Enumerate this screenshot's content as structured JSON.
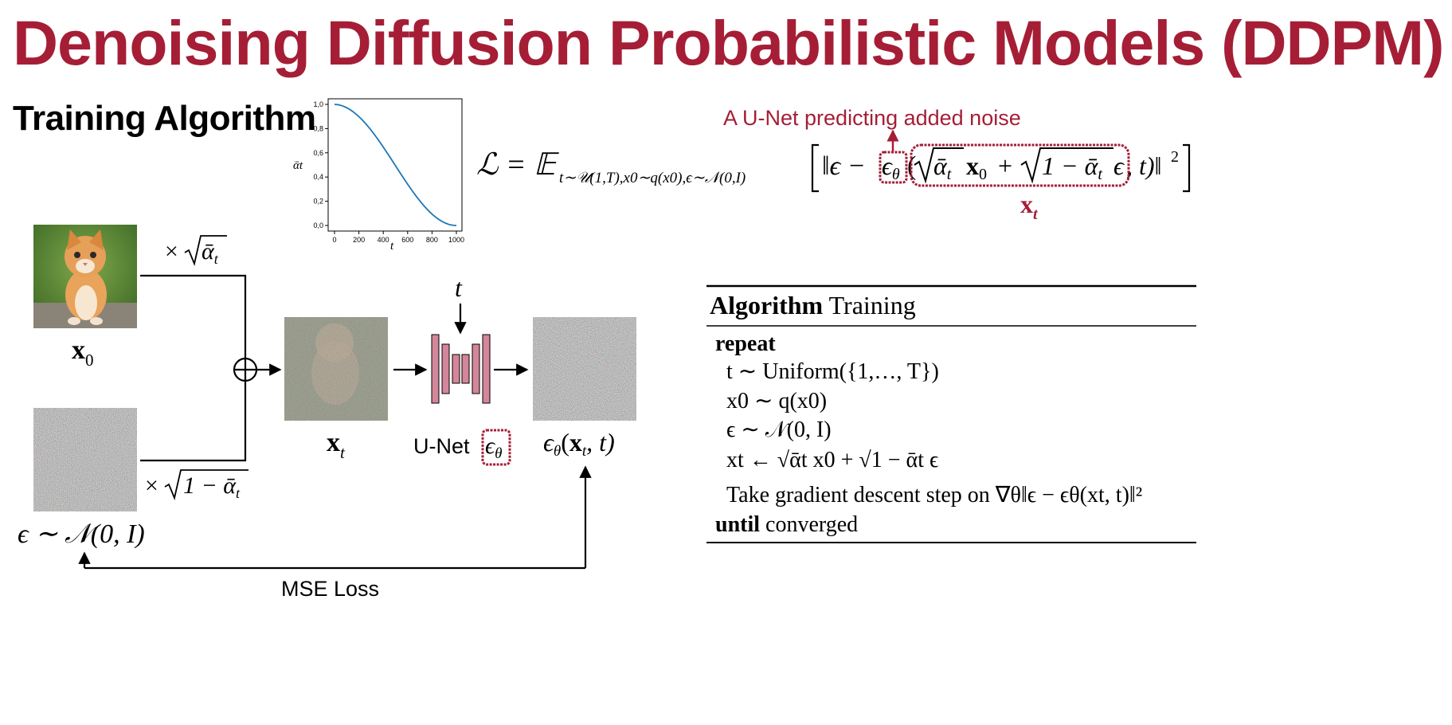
{
  "title": "Denoising Diffusion Probabilistic Models (DDPM)",
  "subtitle": "Training Algorithm",
  "colors": {
    "accent": "#a51e36",
    "unet_block": "#d4869a",
    "curve": "#1f77b4"
  },
  "schedule_plot": {
    "ylabel": "ᾱt",
    "xlabel": "t",
    "x_ticks": [
      "0",
      "200",
      "400",
      "600",
      "800",
      "1000"
    ],
    "y_ticks": [
      "0,0",
      "0,2",
      "0,4",
      "0,6",
      "0,8",
      "1,0"
    ],
    "xlim": [
      0,
      1000
    ],
    "ylim": [
      0,
      1
    ]
  },
  "loss_formula": {
    "lhs": "ℒ = 𝔼",
    "subscript": "t∼𝒰(1,T),x0∼q(x0),ϵ∼𝒩(0,I)",
    "unet_annotation": "A U-Net predicting added noise",
    "xt_label": "xt"
  },
  "flow": {
    "x0_label": "x0",
    "noise_label": "ϵ ∼ 𝒩(0, I)",
    "scale_signal": "× √ᾱt",
    "scale_noise": "× √1 − ᾱt",
    "xt_label": "xt",
    "t_label": "t",
    "unet_label": "U-Net",
    "eps_theta": "ϵθ",
    "output_label": "ϵθ(xt, t)",
    "loss_label": "MSE Loss"
  },
  "algorithm": {
    "header_bold": "Algorithm",
    "header_rest": "Training",
    "repeat": "repeat",
    "line1": "t ∼ Uniform({1,…, T})",
    "line2": "x0 ∼ q(x0)",
    "line3": "ϵ ∼ 𝒩(0, I)",
    "line4": "xt ← √ᾱt x0 + √1 − ᾱt ϵ",
    "line5": "Take gradient descent step on ∇θ‖ϵ − ϵθ(xt, t)‖²",
    "until_bold": "until",
    "until_rest": "converged"
  }
}
